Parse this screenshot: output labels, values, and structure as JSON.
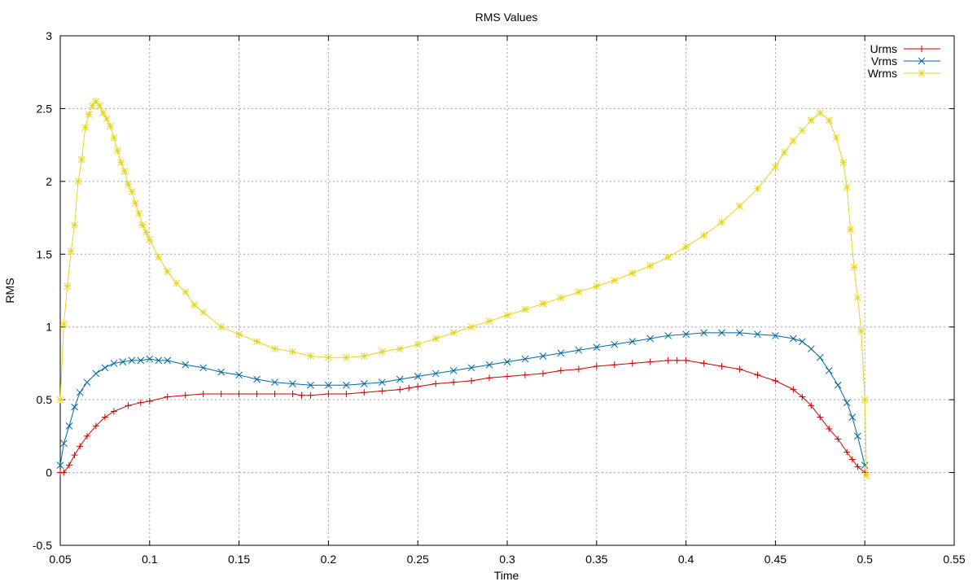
{
  "chart_data": {
    "type": "line",
    "title": "RMS Values",
    "xlabel": "Time",
    "ylabel": "RMS",
    "xlim": [
      0.05,
      0.55
    ],
    "ylim": [
      -0.5,
      3
    ],
    "x_ticks": [
      0.05,
      0.1,
      0.15,
      0.2,
      0.25,
      0.3,
      0.35,
      0.4,
      0.45,
      0.5,
      0.55
    ],
    "x_tick_labels": [
      "0.05",
      "0.1",
      "0.15",
      "0.2",
      "0.25",
      "0.3",
      "0.35",
      "0.4",
      "0.45",
      "0.5",
      "0.55"
    ],
    "y_ticks": [
      -0.5,
      0,
      0.5,
      1,
      1.5,
      2,
      2.5,
      3
    ],
    "y_tick_labels": [
      "-0.5",
      "0",
      "0.5",
      "1",
      "1.5",
      "2",
      "2.5",
      "3"
    ],
    "grid": true,
    "legend_position": "top-right",
    "series": [
      {
        "name": "Urms",
        "color": "#cc0000",
        "marker": "plus",
        "x": [
          0.05,
          0.052,
          0.055,
          0.058,
          0.061,
          0.065,
          0.07,
          0.075,
          0.08,
          0.088,
          0.095,
          0.1,
          0.11,
          0.12,
          0.13,
          0.14,
          0.15,
          0.16,
          0.17,
          0.18,
          0.185,
          0.19,
          0.2,
          0.21,
          0.22,
          0.23,
          0.24,
          0.245,
          0.25,
          0.26,
          0.27,
          0.28,
          0.29,
          0.3,
          0.31,
          0.32,
          0.33,
          0.34,
          0.35,
          0.36,
          0.37,
          0.38,
          0.39,
          0.395,
          0.4,
          0.41,
          0.42,
          0.43,
          0.44,
          0.45,
          0.46,
          0.465,
          0.47,
          0.475,
          0.48,
          0.485,
          0.49,
          0.493,
          0.496,
          0.5
        ],
        "y": [
          0.0,
          0.0,
          0.05,
          0.12,
          0.18,
          0.25,
          0.32,
          0.38,
          0.42,
          0.46,
          0.48,
          0.49,
          0.52,
          0.53,
          0.54,
          0.54,
          0.54,
          0.54,
          0.54,
          0.54,
          0.53,
          0.53,
          0.54,
          0.54,
          0.55,
          0.56,
          0.57,
          0.58,
          0.59,
          0.61,
          0.62,
          0.63,
          0.65,
          0.66,
          0.67,
          0.68,
          0.7,
          0.71,
          0.73,
          0.74,
          0.75,
          0.76,
          0.77,
          0.77,
          0.77,
          0.75,
          0.73,
          0.71,
          0.67,
          0.63,
          0.57,
          0.52,
          0.46,
          0.38,
          0.3,
          0.23,
          0.14,
          0.09,
          0.04,
          0.0
        ]
      },
      {
        "name": "Vrms",
        "color": "#0066a0",
        "marker": "cross",
        "x": [
          0.05,
          0.052,
          0.055,
          0.058,
          0.061,
          0.065,
          0.07,
          0.075,
          0.08,
          0.085,
          0.09,
          0.095,
          0.1,
          0.105,
          0.11,
          0.12,
          0.13,
          0.14,
          0.15,
          0.16,
          0.17,
          0.18,
          0.19,
          0.2,
          0.21,
          0.22,
          0.23,
          0.24,
          0.25,
          0.26,
          0.27,
          0.28,
          0.29,
          0.3,
          0.31,
          0.32,
          0.33,
          0.34,
          0.35,
          0.36,
          0.37,
          0.38,
          0.39,
          0.4,
          0.41,
          0.42,
          0.43,
          0.44,
          0.45,
          0.46,
          0.465,
          0.47,
          0.475,
          0.48,
          0.485,
          0.49,
          0.493,
          0.496,
          0.5
        ],
        "y": [
          0.05,
          0.2,
          0.32,
          0.45,
          0.55,
          0.62,
          0.68,
          0.72,
          0.75,
          0.76,
          0.77,
          0.77,
          0.78,
          0.77,
          0.77,
          0.74,
          0.72,
          0.69,
          0.67,
          0.64,
          0.62,
          0.61,
          0.6,
          0.6,
          0.6,
          0.61,
          0.62,
          0.64,
          0.66,
          0.68,
          0.7,
          0.72,
          0.74,
          0.76,
          0.78,
          0.8,
          0.82,
          0.84,
          0.86,
          0.88,
          0.9,
          0.92,
          0.94,
          0.95,
          0.96,
          0.96,
          0.96,
          0.95,
          0.94,
          0.92,
          0.9,
          0.85,
          0.79,
          0.7,
          0.6,
          0.48,
          0.38,
          0.25,
          0.05
        ]
      },
      {
        "name": "Wrms",
        "color": "#e8d21a",
        "marker": "star",
        "x": [
          0.05,
          0.052,
          0.054,
          0.056,
          0.058,
          0.06,
          0.062,
          0.064,
          0.066,
          0.068,
          0.07,
          0.072,
          0.074,
          0.076,
          0.078,
          0.08,
          0.082,
          0.084,
          0.086,
          0.088,
          0.09,
          0.092,
          0.094,
          0.096,
          0.098,
          0.1,
          0.105,
          0.11,
          0.115,
          0.12,
          0.125,
          0.13,
          0.14,
          0.15,
          0.16,
          0.17,
          0.18,
          0.19,
          0.2,
          0.21,
          0.22,
          0.23,
          0.24,
          0.25,
          0.26,
          0.27,
          0.28,
          0.29,
          0.3,
          0.31,
          0.32,
          0.33,
          0.34,
          0.35,
          0.36,
          0.37,
          0.38,
          0.39,
          0.4,
          0.41,
          0.42,
          0.43,
          0.44,
          0.45,
          0.455,
          0.46,
          0.465,
          0.47,
          0.475,
          0.48,
          0.484,
          0.488,
          0.49,
          0.492,
          0.494,
          0.496,
          0.498,
          0.5,
          0.501
        ],
        "y": [
          0.5,
          1.02,
          1.28,
          1.52,
          1.7,
          2.0,
          2.15,
          2.37,
          2.46,
          2.52,
          2.55,
          2.52,
          2.47,
          2.43,
          2.38,
          2.3,
          2.21,
          2.13,
          2.07,
          1.98,
          1.93,
          1.85,
          1.78,
          1.7,
          1.65,
          1.6,
          1.48,
          1.38,
          1.3,
          1.24,
          1.15,
          1.1,
          1.0,
          0.95,
          0.9,
          0.85,
          0.83,
          0.8,
          0.79,
          0.79,
          0.8,
          0.83,
          0.85,
          0.88,
          0.92,
          0.96,
          1.0,
          1.04,
          1.08,
          1.12,
          1.16,
          1.2,
          1.24,
          1.28,
          1.32,
          1.37,
          1.42,
          1.48,
          1.55,
          1.63,
          1.72,
          1.83,
          1.95,
          2.1,
          2.2,
          2.28,
          2.35,
          2.42,
          2.47,
          2.42,
          2.3,
          2.13,
          1.96,
          1.67,
          1.41,
          1.2,
          0.97,
          0.5,
          -0.02
        ]
      }
    ]
  }
}
